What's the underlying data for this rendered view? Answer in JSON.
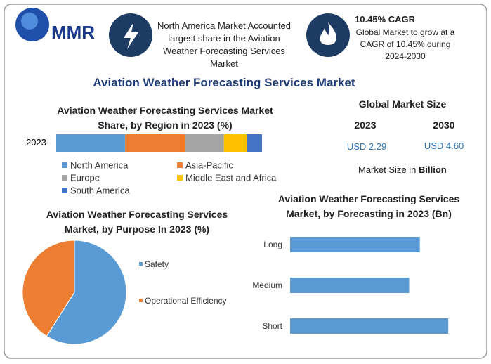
{
  "header": {
    "logo": "MMR",
    "highlight_1": "North America Market Accounted largest share in the Aviation Weather Forecasting Services Market",
    "highlight_2_title": "10.45% CAGR",
    "highlight_2_text": "Global Market to grow at a CAGR of 10.45% during 2024-2030"
  },
  "title": "Aviation Weather Forecasting Services Market",
  "market_size": {
    "title": "Global Market Size",
    "years": [
      "2023",
      "2030"
    ],
    "values": [
      "USD 2.29",
      "USD 4.60"
    ],
    "note": "Market Size in",
    "note_unit": "Billion"
  },
  "chart_data": [
    {
      "type": "stacked-bar",
      "title": "Aviation Weather Forecasting Services Market Share, by Region in 2023 (%)",
      "categories": [
        "2023"
      ],
      "xlim": [
        0,
        100
      ],
      "series": [
        {
          "name": "North America",
          "color": "#5b9bd5",
          "values": [
            33.5
          ]
        },
        {
          "name": "Asia-Pacific",
          "color": "#ed7d31",
          "values": [
            29
          ]
        },
        {
          "name": "Europe",
          "color": "#a5a5a5",
          "values": [
            19
          ]
        },
        {
          "name": "Middle East and Africa",
          "color": "#ffc000",
          "values": [
            11
          ]
        },
        {
          "name": "South America",
          "color": "#4472c4",
          "values": [
            7.5
          ]
        }
      ]
    },
    {
      "type": "pie",
      "title": "Aviation Weather Forecasting Services Market, by Purpose In 2023 (%)",
      "categories": [
        "Safety",
        "Operational Efficiency"
      ],
      "values": [
        59,
        41
      ],
      "colors": [
        "#5b9bd5",
        "#ed7d31"
      ]
    },
    {
      "type": "bar",
      "title": "Aviation Weather Forecasting Services Market, by Forecasting in 2023 (Bn)",
      "categories": [
        "Long",
        "Medium",
        "Short"
      ],
      "values": [
        0.73,
        0.67,
        0.89
      ],
      "color": "#5b9bd5",
      "xlim": [
        0,
        1
      ]
    }
  ]
}
